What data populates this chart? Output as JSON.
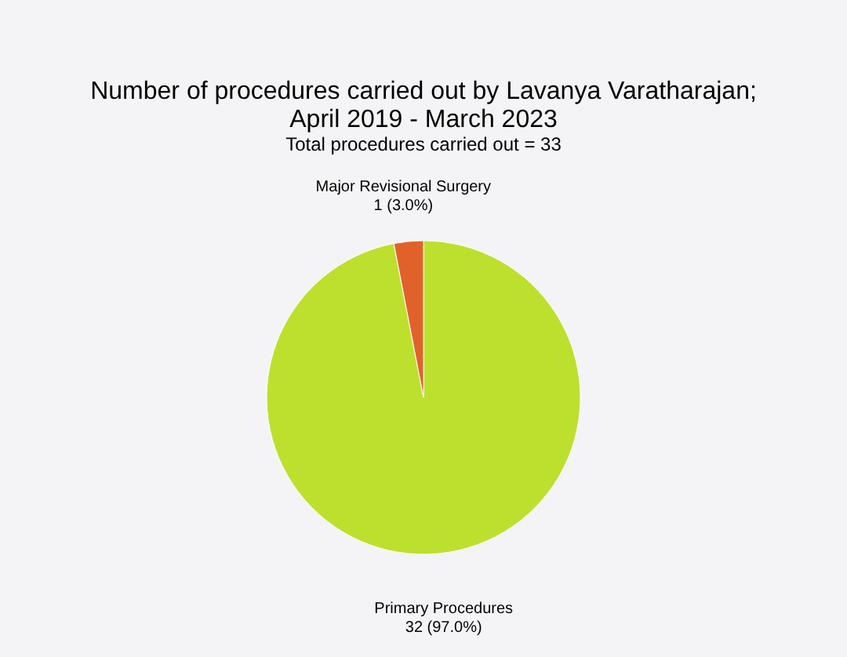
{
  "chart_data": {
    "type": "pie",
    "title": [
      "Number of procedures carried out by Lavanya Varatharajan;",
      "April 2019 - March 2023"
    ],
    "subtitle": "Total procedures carried out = 33",
    "categories": [
      "Primary Procedures",
      "Major Revisional Surgery"
    ],
    "values": [
      32,
      1
    ],
    "colors": [
      "#bde02f",
      "#e0622a"
    ],
    "value_labels": [
      "32 (97.0%)",
      "1 (3.0%)"
    ],
    "legend": false
  }
}
